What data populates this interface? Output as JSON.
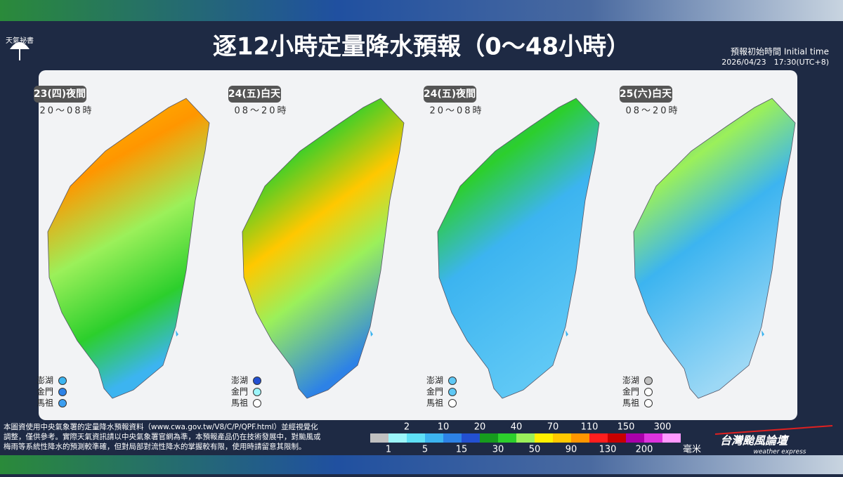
{
  "header": {
    "logo": "天氣祕書",
    "title": "逐12小時定量降水預報（0～48小時）",
    "init_label": "預報初始時間 Initial time",
    "init_time": "2026/04/23　17:30(UTC+8)"
  },
  "panels": [
    {
      "label": "23(四)夜間",
      "time": "20～08時",
      "islands": [
        {
          "name": "澎湖",
          "color": "#3cb4f0"
        },
        {
          "name": "金門",
          "color": "#2d82e6"
        },
        {
          "name": "馬祖",
          "color": "#3c9ef0"
        }
      ]
    },
    {
      "label": "24(五)白天",
      "time": "08～20時",
      "islands": [
        {
          "name": "澎湖",
          "color": "#2350d2"
        },
        {
          "name": "金門",
          "color": "#9cf5fa"
        },
        {
          "name": "馬祖",
          "color": "#ffffff"
        }
      ]
    },
    {
      "label": "24(五)夜間",
      "time": "20～08時",
      "islands": [
        {
          "name": "澎湖",
          "color": "#5fc8f5"
        },
        {
          "name": "金門",
          "color": "#5fc8f5"
        },
        {
          "name": "馬祖",
          "color": "#ffffff"
        }
      ]
    },
    {
      "label": "25(六)白天",
      "time": "08～20時",
      "islands": [
        {
          "name": "澎湖",
          "color": "#c0c0c0"
        },
        {
          "name": "金門",
          "color": "#ffffff"
        },
        {
          "name": "馬祖",
          "color": "#ffffff"
        }
      ]
    }
  ],
  "footer": {
    "note": [
      "本圖資使用中央氣象署的定量降水預報資料（www.cwa.gov.tw/V8/C/P/QPF.html）並經視覺化",
      "調整，僅供參考。實際天氣資訊請以中央氣象署官網為準，本預報產品仍在技術發展中，對颱風或",
      "梅雨等系統性降水的預測較準確，但對局部對流性降水的掌握較有限，使用時請留意其限制。"
    ],
    "legend": {
      "thresholds": [
        1,
        2,
        5,
        10,
        15,
        20,
        30,
        40,
        50,
        70,
        90,
        110,
        130,
        150,
        200,
        300
      ],
      "colors": [
        "#c0c0c0",
        "#9cf5fa",
        "#5fe0f5",
        "#3cb4f0",
        "#2d82e6",
        "#2350d2",
        "#169b1e",
        "#2ccf2c",
        "#9bf05a",
        "#fff000",
        "#ffc800",
        "#ff9600",
        "#ff1e1e",
        "#c80000",
        "#aa00aa",
        "#dd33dd",
        "#ff99ff"
      ],
      "unit": "毫米"
    },
    "brand": {
      "name": "台灣颱風論壇",
      "tagline": "weather express"
    }
  }
}
